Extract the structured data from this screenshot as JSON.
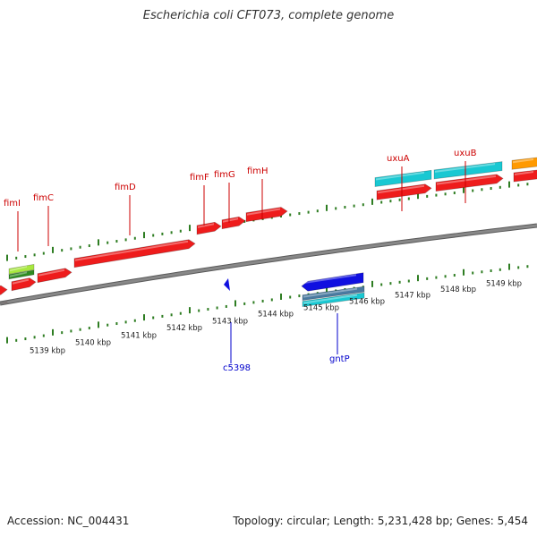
{
  "title": "Escherichia coli CFT073, complete genome",
  "footer": {
    "accession": "Accession: NC_004431",
    "summary": "Topology: circular; Length: 5,231,428 bp; Genes: 5,454"
  },
  "colors": {
    "backbone": "#888888",
    "tick": "#2e7d22",
    "gene_label_forward": "#cc0000",
    "gene_label_reverse": "#0000cc",
    "red": "#ee1c1c",
    "cyan": "#19c8d2",
    "orange": "#ff9a00",
    "lime": "#a8e840",
    "blue": "#1010e0",
    "slate": "#4a7aa0"
  },
  "kbp_labels": [
    "5139 kbp",
    "5140 kbp",
    "5141 kbp",
    "5142 kbp",
    "5143 kbp",
    "5144 kbp",
    "5145 kbp",
    "5146 kbp",
    "5147 kbp",
    "5148 kbp",
    "5149 kbp"
  ],
  "gene_labels": [
    {
      "name": "fimI",
      "strand": "forward"
    },
    {
      "name": "fimC",
      "strand": "forward"
    },
    {
      "name": "fimD",
      "strand": "forward"
    },
    {
      "name": "fimF",
      "strand": "forward"
    },
    {
      "name": "fimG",
      "strand": "forward"
    },
    {
      "name": "fimH",
      "strand": "forward"
    },
    {
      "name": "uxuA",
      "strand": "forward"
    },
    {
      "name": "uxuB",
      "strand": "forward"
    },
    {
      "name": "c5398",
      "strand": "reverse"
    },
    {
      "name": "gntP",
      "strand": "reverse"
    }
  ]
}
